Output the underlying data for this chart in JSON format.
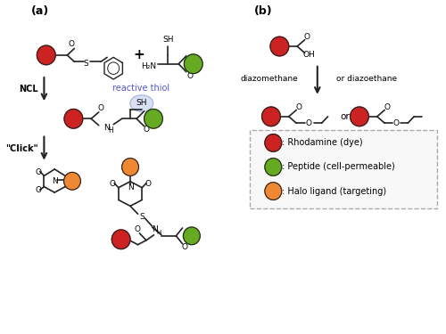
{
  "panel_a_label": "(a)",
  "panel_b_label": "(b)",
  "ncl_label": "NCL",
  "click_label": "\"Click\"",
  "reactive_thiol_label": "reactive thiol",
  "diazomethane_label": "diazomethane",
  "or_diazoethane_label": "or diazoethane",
  "or_label": "or",
  "legend_items": [
    {
      "color": "#cc2222",
      "text": ": Rhodamine (dye)"
    },
    {
      "color": "#66aa22",
      "text": ": Peptide (cell-permeable)"
    },
    {
      "color": "#ee8833",
      "text": ": Halo ligand (targeting)"
    }
  ],
  "red_color": "#cc2222",
  "green_color": "#66aa22",
  "orange_color": "#ee8833",
  "blue_thiol_color": "#aabbee",
  "line_color": "#222222",
  "bg_color": "#ffffff",
  "text_color": "#000000",
  "reactive_thiol_text_color": "#5555cc"
}
